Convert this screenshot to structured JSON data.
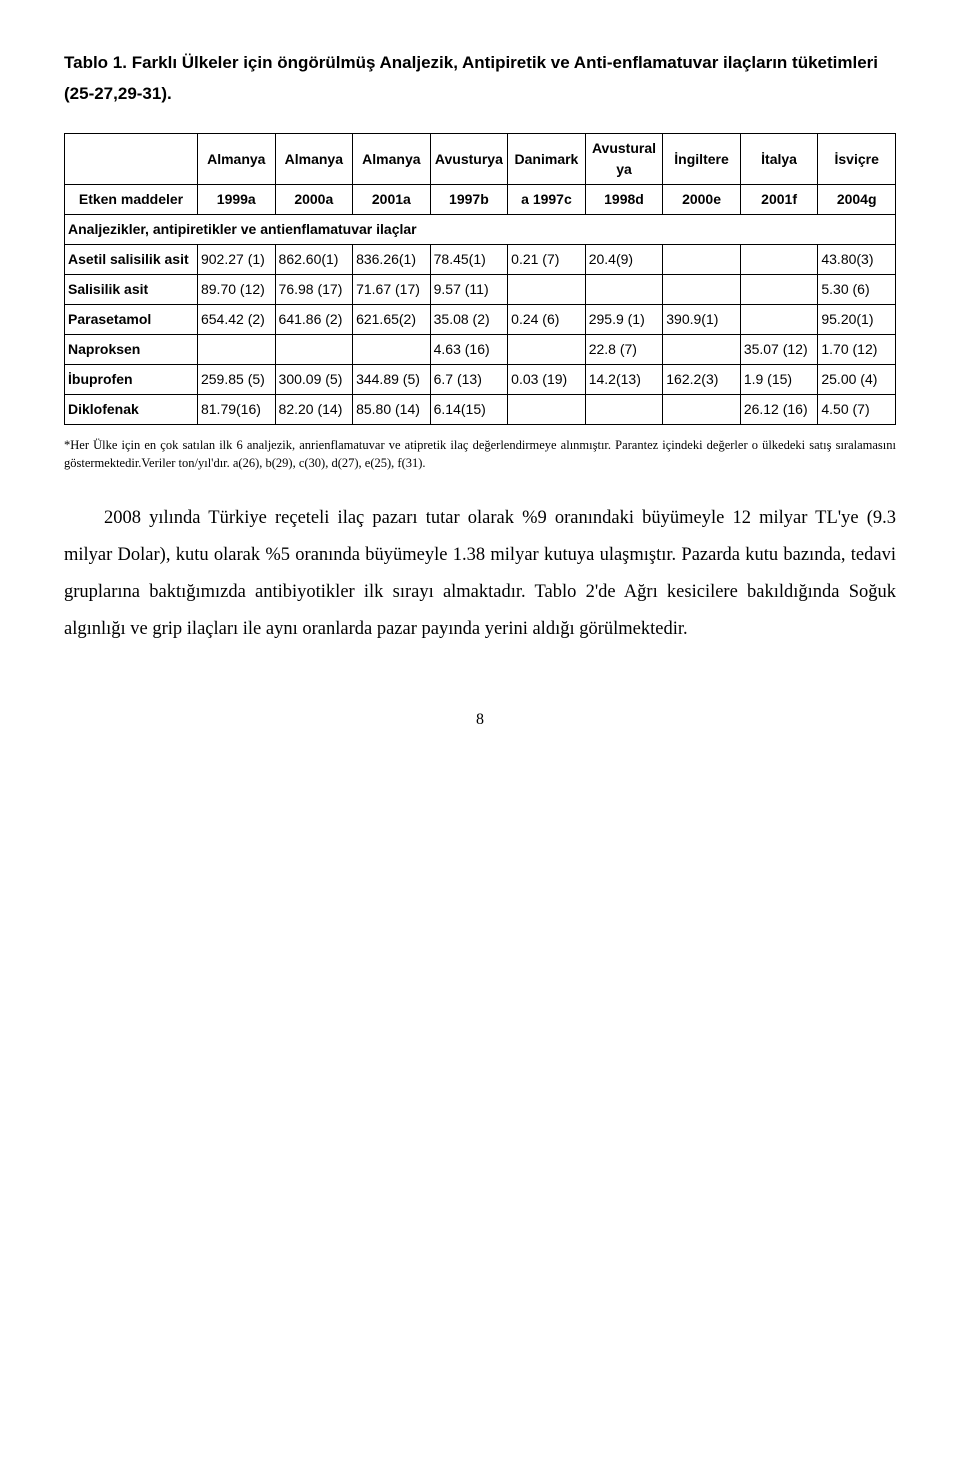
{
  "table_title": "Tablo 1. Farklı Ülkeler için öngörülmüş Analjezik, Antipiretik ve Anti-enflamatuvar  ilaçların tüketimleri (25-27,29-31).",
  "header_row1": [
    "",
    "Almanya",
    "Almanya",
    "Almanya",
    "Avusturya",
    "Danimark",
    "Avusturalya",
    "İngiltere",
    "İtalya",
    "İsviçre"
  ],
  "header_row2": [
    "Etken maddeler",
    "1999a",
    "2000a",
    "2001a",
    "1997b",
    "a 1997c",
    "1998d",
    "2000e",
    "2001f",
    "2004g"
  ],
  "subheader": "Analjezikler,    antipiretikler    ve antienflamatuvar ilaçlar",
  "rows": [
    {
      "label": "Asetil salisilik asit",
      "cells": [
        "902.27 (1)",
        "862.60(1)",
        "836.26(1)",
        "78.45(1)",
        "0.21 (7)",
        "20.4(9)",
        "",
        "",
        "43.80(3)"
      ]
    },
    {
      "label": "Salisilik asit",
      "cells": [
        "89.70 (12)",
        "76.98 (17)",
        "71.67 (17)",
        "9.57 (11)",
        "",
        "",
        "",
        "",
        "5.30 (6)"
      ]
    },
    {
      "label": "Parasetamol",
      "cells": [
        "654.42 (2)",
        "641.86 (2)",
        "621.65(2)",
        "35.08 (2)",
        "0.24 (6)",
        "295.9 (1)",
        "390.9(1)",
        "",
        "95.20(1)"
      ]
    },
    {
      "label": "Naproksen",
      "cells": [
        "",
        "",
        "",
        "4.63 (16)",
        "",
        "22.8 (7)",
        "",
        "35.07 (12)",
        "1.70 (12)"
      ]
    },
    {
      "label": "İbuprofen",
      "cells": [
        "259.85 (5)",
        "300.09 (5)",
        "344.89 (5)",
        "6.7 (13)",
        "0.03 (19)",
        "14.2(13)",
        "162.2(3)",
        "1.9 (15)",
        "25.00 (4)"
      ]
    },
    {
      "label": "Diklofenak",
      "cells": [
        "81.79(16)",
        "82.20 (14)",
        "85.80 (14)",
        "6.14(15)",
        "",
        "",
        "",
        "26.12 (16)",
        "4.50 (7)"
      ]
    }
  ],
  "footnote": "*Her Ülke için en çok satılan ilk 6 analjezik, anrienflamatuvar ve atipretik ilaç değerlendirmeye alınmıştır. Parantez içindeki değerler o ülkedeki satış sıralamasını göstermektedir.Veriler ton/yıl'dır. a(26), b(29), c(30), d(27), e(25), f(31).",
  "paragraph": "2008 yılında Türkiye reçeteli ilaç pazarı tutar olarak %9 oranındaki büyümeyle 12 milyar TL'ye (9.3 milyar Dolar), kutu olarak %5 oranında büyümeyle 1.38 milyar kutuya ulaşmıştır. Pazarda kutu bazında, tedavi   gruplarına baktığımızda antibiyotikler ilk sırayı almaktadır. Tablo 2'de Ağrı kesicilere bakıldığında Soğuk algınlığı ve grip ilaçları ile aynı oranlarda pazar payında yerini aldığı görülmektedir.",
  "page_number": "8"
}
